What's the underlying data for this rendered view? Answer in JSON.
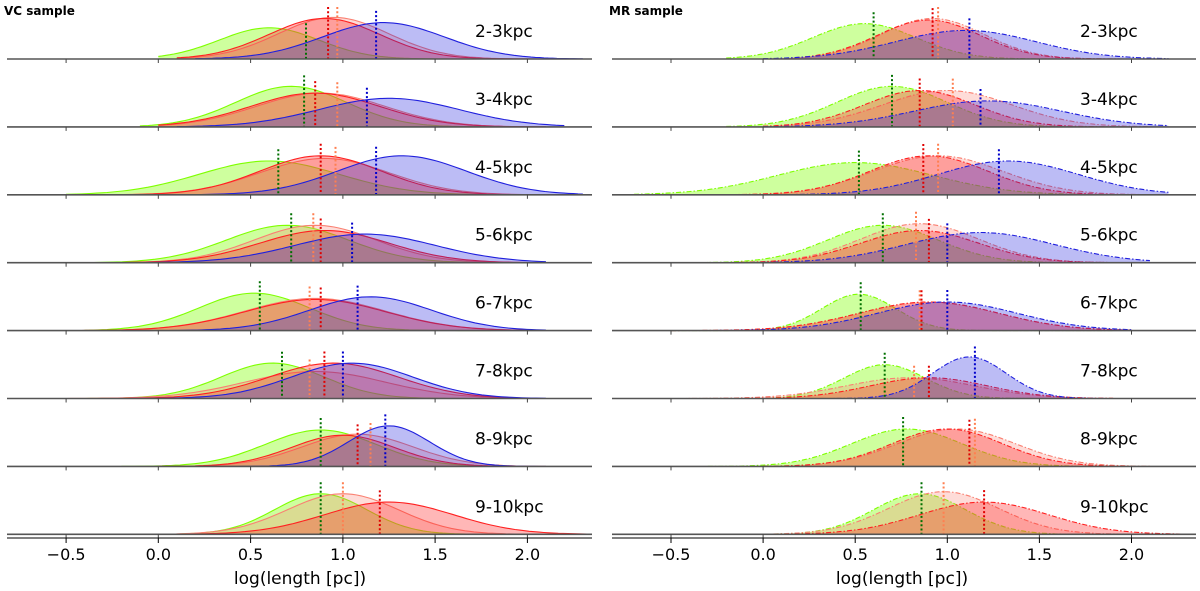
{
  "chart_data": [
    {
      "type": "area",
      "title": "VC sample",
      "xlabel": "log(length [pc])",
      "ylabel": "",
      "xlim": [
        -0.82,
        2.35
      ],
      "xticks": [
        -0.5,
        0.0,
        0.5,
        1.0,
        1.5,
        2.0
      ],
      "xtick_labels": [
        "−0.5",
        "0.0",
        "0.5",
        "1.0",
        "1.5",
        "2.0"
      ],
      "line_style": "solid",
      "series_colors": {
        "green": "#7fff00",
        "salmon": "#fa8072",
        "red": "#ff2020",
        "blue": "#2020dd"
      },
      "median_line_colors": {
        "green": "#007000",
        "salmon": "#ff7f50",
        "red": "#e00000",
        "blue": "#0000cc"
      },
      "rows": [
        {
          "label": "2-3kpc",
          "series": [
            {
              "color": "green",
              "mu": 0.6,
              "sigma": 0.27,
              "amp": 0.6,
              "range": [
                0.0,
                1.9
              ],
              "median": 0.8
            },
            {
              "color": "salmon",
              "mu": 0.95,
              "sigma": 0.3,
              "amp": 0.8,
              "range": [
                0.1,
                2.2
              ],
              "median": 0.97
            },
            {
              "color": "red",
              "mu": 0.9,
              "sigma": 0.3,
              "amp": 0.78,
              "range": [
                0.1,
                2.1
              ],
              "median": 0.92
            },
            {
              "color": "blue",
              "mu": 1.22,
              "sigma": 0.33,
              "amp": 0.7,
              "range": [
                0.2,
                2.3
              ],
              "median": 1.18
            }
          ]
        },
        {
          "label": "3-4kpc",
          "series": [
            {
              "color": "green",
              "mu": 0.72,
              "sigma": 0.3,
              "amp": 0.78,
              "range": [
                -0.1,
                1.9
              ],
              "median": 0.79
            },
            {
              "color": "salmon",
              "mu": 0.88,
              "sigma": 0.35,
              "amp": 0.65,
              "range": [
                0.0,
                2.1
              ],
              "median": 0.97
            },
            {
              "color": "red",
              "mu": 0.85,
              "sigma": 0.35,
              "amp": 0.65,
              "range": [
                0.0,
                2.1
              ],
              "median": 0.85
            },
            {
              "color": "blue",
              "mu": 1.25,
              "sigma": 0.38,
              "amp": 0.55,
              "range": [
                0.1,
                2.2
              ],
              "median": 1.13
            }
          ]
        },
        {
          "label": "4-5kpc",
          "series": [
            {
              "color": "green",
              "mu": 0.6,
              "sigma": 0.38,
              "amp": 0.65,
              "range": [
                -0.5,
                2.0
              ],
              "median": 0.65
            },
            {
              "color": "salmon",
              "mu": 0.9,
              "sigma": 0.35,
              "amp": 0.7,
              "range": [
                -0.3,
                2.2
              ],
              "median": 0.96
            },
            {
              "color": "red",
              "mu": 0.88,
              "sigma": 0.33,
              "amp": 0.75,
              "range": [
                -0.3,
                2.1
              ],
              "median": 0.88
            },
            {
              "color": "blue",
              "mu": 1.32,
              "sigma": 0.35,
              "amp": 0.75,
              "range": [
                0.0,
                2.3
              ],
              "median": 1.18
            }
          ]
        },
        {
          "label": "5-6kpc",
          "series": [
            {
              "color": "green",
              "mu": 0.7,
              "sigma": 0.33,
              "amp": 0.72,
              "range": [
                -0.4,
                1.9
              ],
              "median": 0.72
            },
            {
              "color": "salmon",
              "mu": 0.85,
              "sigma": 0.33,
              "amp": 0.72,
              "range": [
                -0.3,
                2.0
              ],
              "median": 0.84
            },
            {
              "color": "red",
              "mu": 0.9,
              "sigma": 0.35,
              "amp": 0.62,
              "range": [
                -0.3,
                2.0
              ],
              "median": 0.88
            },
            {
              "color": "blue",
              "mu": 1.12,
              "sigma": 0.38,
              "amp": 0.55,
              "range": [
                -0.2,
                2.1
              ],
              "median": 1.05
            }
          ]
        },
        {
          "label": "6-7kpc",
          "series": [
            {
              "color": "green",
              "mu": 0.52,
              "sigma": 0.3,
              "amp": 0.72,
              "range": [
                -0.4,
                1.8
              ],
              "median": 0.55
            },
            {
              "color": "salmon",
              "mu": 0.85,
              "sigma": 0.38,
              "amp": 0.62,
              "range": [
                -0.5,
                2.0
              ],
              "median": 0.82
            },
            {
              "color": "red",
              "mu": 0.85,
              "sigma": 0.38,
              "amp": 0.6,
              "range": [
                -0.5,
                2.0
              ],
              "median": 0.88
            },
            {
              "color": "blue",
              "mu": 1.15,
              "sigma": 0.33,
              "amp": 0.65,
              "range": [
                -0.2,
                2.1
              ],
              "median": 1.08
            }
          ]
        },
        {
          "label": "7-8kpc",
          "series": [
            {
              "color": "green",
              "mu": 0.62,
              "sigma": 0.28,
              "amp": 0.68,
              "range": [
                -0.5,
                1.8
              ],
              "median": 0.67
            },
            {
              "color": "salmon",
              "mu": 0.85,
              "sigma": 0.38,
              "amp": 0.52,
              "range": [
                -0.5,
                2.0
              ],
              "median": 0.82
            },
            {
              "color": "red",
              "mu": 0.95,
              "sigma": 0.35,
              "amp": 0.68,
              "range": [
                -0.5,
                2.0
              ],
              "median": 0.9
            },
            {
              "color": "blue",
              "mu": 1.05,
              "sigma": 0.33,
              "amp": 0.68,
              "range": [
                -0.3,
                2.1
              ],
              "median": 1.0
            }
          ]
        },
        {
          "label": "8-9kpc",
          "series": [
            {
              "color": "green",
              "mu": 0.88,
              "sigma": 0.3,
              "amp": 0.7,
              "range": [
                -0.2,
                2.0
              ],
              "median": 0.88
            },
            {
              "color": "salmon",
              "mu": 1.08,
              "sigma": 0.3,
              "amp": 0.62,
              "range": [
                0.0,
                2.1
              ],
              "median": 1.15
            },
            {
              "color": "red",
              "mu": 1.0,
              "sigma": 0.28,
              "amp": 0.6,
              "range": [
                0.0,
                2.0
              ],
              "median": 1.08
            },
            {
              "color": "blue",
              "mu": 1.25,
              "sigma": 0.22,
              "amp": 0.78,
              "range": [
                0.2,
                2.1
              ],
              "median": 1.23
            }
          ]
        },
        {
          "label": "9-10kpc",
          "series": [
            {
              "color": "green",
              "mu": 0.88,
              "sigma": 0.25,
              "amp": 0.78,
              "range": [
                0.0,
                1.9
              ],
              "median": 0.88
            },
            {
              "color": "salmon",
              "mu": 1.0,
              "sigma": 0.3,
              "amp": 0.78,
              "range": [
                0.0,
                2.2
              ],
              "median": 1.0
            },
            {
              "color": "red",
              "mu": 1.25,
              "sigma": 0.35,
              "amp": 0.62,
              "range": [
                0.0,
                2.35
              ],
              "median": 1.2
            }
          ]
        }
      ]
    },
    {
      "type": "area",
      "title": "MR sample",
      "xlabel": "log(length [pc])",
      "ylabel": "",
      "xlim": [
        -0.82,
        2.35
      ],
      "xticks": [
        -0.5,
        0.0,
        0.5,
        1.0,
        1.5,
        2.0
      ],
      "xtick_labels": [
        "−0.5",
        "0.0",
        "0.5",
        "1.0",
        "1.5",
        "2.0"
      ],
      "line_style": "dash-dot",
      "series_colors": {
        "green": "#7fff00",
        "salmon": "#fa8072",
        "red": "#ff2020",
        "blue": "#2020dd"
      },
      "median_line_colors": {
        "green": "#007000",
        "salmon": "#ff7f50",
        "red": "#e00000",
        "blue": "#0000cc"
      },
      "rows": [
        {
          "label": "2-3kpc",
          "series": [
            {
              "color": "green",
              "mu": 0.55,
              "sigma": 0.28,
              "amp": 0.68,
              "range": [
                -0.2,
                1.8
              ],
              "median": 0.6
            },
            {
              "color": "salmon",
              "mu": 0.92,
              "sigma": 0.28,
              "amp": 0.78,
              "range": [
                0.0,
                2.0
              ],
              "median": 0.95
            },
            {
              "color": "red",
              "mu": 0.9,
              "sigma": 0.28,
              "amp": 0.75,
              "range": [
                0.0,
                2.0
              ],
              "median": 0.92
            },
            {
              "color": "blue",
              "mu": 1.1,
              "sigma": 0.38,
              "amp": 0.55,
              "range": [
                0.0,
                2.2
              ],
              "median": 1.12
            }
          ]
        },
        {
          "label": "3-4kpc",
          "series": [
            {
              "color": "green",
              "mu": 0.7,
              "sigma": 0.3,
              "amp": 0.78,
              "range": [
                -0.2,
                2.0
              ],
              "median": 0.7
            },
            {
              "color": "salmon",
              "mu": 1.0,
              "sigma": 0.35,
              "amp": 0.7,
              "range": [
                0.0,
                2.1
              ],
              "median": 1.03
            },
            {
              "color": "red",
              "mu": 0.85,
              "sigma": 0.3,
              "amp": 0.7,
              "range": [
                0.0,
                2.0
              ],
              "median": 0.85
            },
            {
              "color": "blue",
              "mu": 1.22,
              "sigma": 0.4,
              "amp": 0.5,
              "range": [
                0.0,
                2.2
              ],
              "median": 1.18
            }
          ]
        },
        {
          "label": "4-5kpc",
          "series": [
            {
              "color": "green",
              "mu": 0.5,
              "sigma": 0.42,
              "amp": 0.62,
              "range": [
                -0.7,
                2.0
              ],
              "median": 0.52
            },
            {
              "color": "salmon",
              "mu": 0.95,
              "sigma": 0.35,
              "amp": 0.75,
              "range": [
                -0.4,
                2.1
              ],
              "median": 0.95
            },
            {
              "color": "red",
              "mu": 0.9,
              "sigma": 0.32,
              "amp": 0.75,
              "range": [
                -0.4,
                2.1
              ],
              "median": 0.87
            },
            {
              "color": "blue",
              "mu": 1.33,
              "sigma": 0.38,
              "amp": 0.65,
              "range": [
                -0.2,
                2.2
              ],
              "median": 1.28
            }
          ]
        },
        {
          "label": "5-6kpc",
          "series": [
            {
              "color": "green",
              "mu": 0.65,
              "sigma": 0.3,
              "amp": 0.72,
              "range": [
                -0.5,
                2.0
              ],
              "median": 0.65
            },
            {
              "color": "salmon",
              "mu": 0.85,
              "sigma": 0.32,
              "amp": 0.75,
              "range": [
                -0.3,
                2.0
              ],
              "median": 0.83
            },
            {
              "color": "red",
              "mu": 0.85,
              "sigma": 0.32,
              "amp": 0.62,
              "range": [
                -0.3,
                2.0
              ],
              "median": 0.9
            },
            {
              "color": "blue",
              "mu": 1.18,
              "sigma": 0.4,
              "amp": 0.58,
              "range": [
                -0.4,
                2.1
              ],
              "median": 1.0
            }
          ]
        },
        {
          "label": "6-7kpc",
          "series": [
            {
              "color": "green",
              "mu": 0.52,
              "sigma": 0.2,
              "amp": 0.7,
              "range": [
                -0.5,
                1.9
              ],
              "median": 0.53
            },
            {
              "color": "salmon",
              "mu": 0.9,
              "sigma": 0.38,
              "amp": 0.55,
              "range": [
                -0.5,
                2.0
              ],
              "median": 0.85
            },
            {
              "color": "red",
              "mu": 0.9,
              "sigma": 0.38,
              "amp": 0.55,
              "range": [
                -0.5,
                2.0
              ],
              "median": 0.86
            },
            {
              "color": "blue",
              "mu": 1.0,
              "sigma": 0.38,
              "amp": 0.55,
              "range": [
                -0.3,
                2.0
              ],
              "median": 1.0
            }
          ]
        },
        {
          "label": "7-8kpc",
          "series": [
            {
              "color": "green",
              "mu": 0.66,
              "sigma": 0.22,
              "amp": 0.65,
              "range": [
                -0.5,
                1.8
              ],
              "median": 0.66
            },
            {
              "color": "salmon",
              "mu": 0.8,
              "sigma": 0.35,
              "amp": 0.4,
              "range": [
                -0.5,
                1.9
              ],
              "median": 0.82
            },
            {
              "color": "red",
              "mu": 0.9,
              "sigma": 0.32,
              "amp": 0.4,
              "range": [
                -0.5,
                1.9
              ],
              "median": 0.9
            },
            {
              "color": "blue",
              "mu": 1.12,
              "sigma": 0.2,
              "amp": 0.8,
              "range": [
                0.0,
                1.9
              ],
              "median": 1.15
            }
          ]
        },
        {
          "label": "8-9kpc",
          "series": [
            {
              "color": "green",
              "mu": 0.78,
              "sigma": 0.3,
              "amp": 0.72,
              "range": [
                -0.3,
                2.0
              ],
              "median": 0.76
            },
            {
              "color": "salmon",
              "mu": 1.05,
              "sigma": 0.32,
              "amp": 0.72,
              "range": [
                0.0,
                2.1
              ],
              "median": 1.15
            },
            {
              "color": "red",
              "mu": 1.0,
              "sigma": 0.3,
              "amp": 0.72,
              "range": [
                0.0,
                2.0
              ],
              "median": 1.12
            }
          ]
        },
        {
          "label": "9-10kpc",
          "series": [
            {
              "color": "green",
              "mu": 0.85,
              "sigma": 0.25,
              "amp": 0.78,
              "range": [
                0.0,
                1.9
              ],
              "median": 0.86
            },
            {
              "color": "salmon",
              "mu": 0.98,
              "sigma": 0.3,
              "amp": 0.82,
              "range": [
                0.0,
                2.2
              ],
              "median": 0.98
            },
            {
              "color": "red",
              "mu": 1.2,
              "sigma": 0.35,
              "amp": 0.62,
              "range": [
                0.0,
                2.35
              ],
              "median": 1.2
            }
          ]
        }
      ]
    }
  ]
}
